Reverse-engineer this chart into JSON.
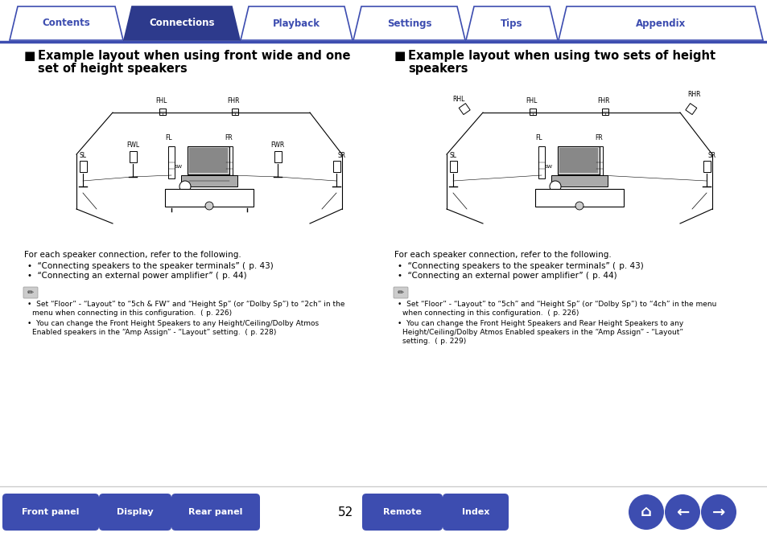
{
  "bg_color": "#ffffff",
  "tab_color_inactive": "#ffffff",
  "tab_color_active": "#2d3a8c",
  "tab_border_color": "#3d4db0",
  "tab_text_color_inactive": "#3d4db0",
  "tab_text_color_active": "#ffffff",
  "tabs": [
    "Contents",
    "Connections",
    "Playback",
    "Settings",
    "Tips",
    "Appendix"
  ],
  "active_tab": 1,
  "bottom_buttons": [
    "Front panel",
    "Display",
    "Rear panel",
    "Remote",
    "Index"
  ],
  "page_number": "52",
  "button_color": "#3d4db0",
  "button_text_color": "#ffffff",
  "divider_color": "#3d4db0"
}
